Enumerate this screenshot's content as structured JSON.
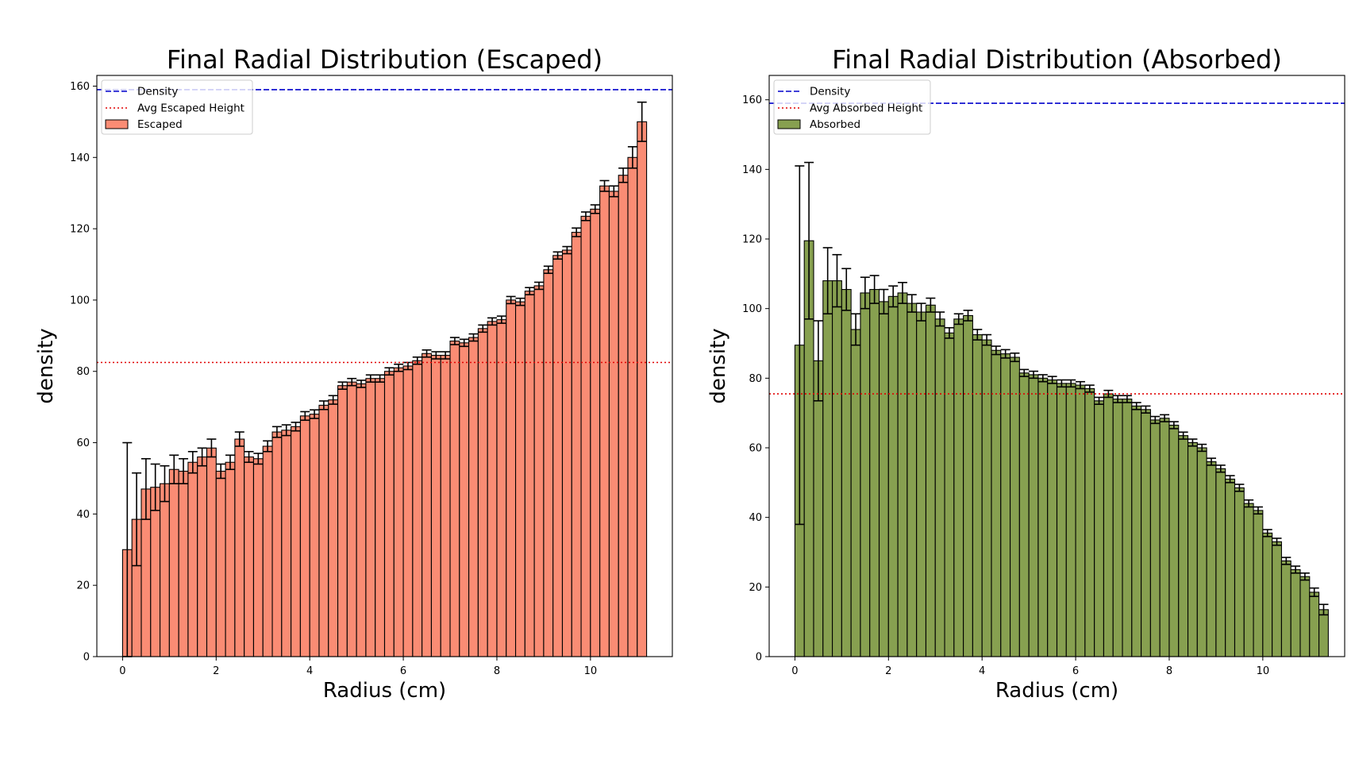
{
  "chart_data": [
    {
      "type": "bar",
      "title": "Final Radial Distribution (Escaped)",
      "xlabel": "Radius (cm)",
      "ylabel": "density",
      "xlim": [
        -0.55,
        11.75
      ],
      "ylim": [
        0,
        163
      ],
      "xticks": [
        0,
        2,
        4,
        6,
        8,
        10
      ],
      "yticks": [
        0,
        20,
        40,
        60,
        80,
        100,
        120,
        140,
        160
      ],
      "grid": false,
      "legend_position": "upper left",
      "bin_start": 0.0,
      "bin_width": 0.2,
      "bar_color": "#fa8c74",
      "density_line": 159,
      "density_label": "Density",
      "density_color": "#0000cc",
      "avg_line": 82.5,
      "avg_label": "Avg Escaped Height",
      "avg_color": "#e00000",
      "series": [
        {
          "name": "Escaped",
          "values": [
            30,
            38.5,
            47,
            47.5,
            48.5,
            52.5,
            52,
            54.5,
            56,
            58.5,
            52,
            54.5,
            61,
            56,
            55.5,
            59,
            63,
            63.5,
            64.5,
            67.5,
            68,
            70.5,
            72,
            76,
            77,
            76.5,
            78,
            78,
            80,
            81,
            81.5,
            83,
            85,
            84.5,
            84.5,
            88.5,
            88,
            89.5,
            92,
            94,
            94.5,
            100,
            99.5,
            102.5,
            104,
            108.5,
            112.5,
            114,
            119,
            123.5,
            125.5,
            132,
            130.5,
            135,
            140,
            150
          ],
          "errors": [
            30,
            13,
            8.5,
            6.5,
            5,
            4,
            3.5,
            3,
            2.5,
            2.5,
            2,
            2,
            2,
            1.5,
            1.5,
            1.5,
            1.5,
            1.5,
            1.2,
            1.2,
            1.2,
            1.2,
            1.2,
            1,
            1,
            1,
            1,
            1,
            1,
            1,
            1,
            1,
            1,
            1,
            1,
            1,
            1,
            1,
            1,
            1,
            1,
            1,
            1,
            1,
            1,
            1,
            1,
            1,
            1.2,
            1.2,
            1.2,
            1.5,
            1.5,
            2,
            3,
            5.5
          ]
        }
      ]
    },
    {
      "type": "bar",
      "title": "Final Radial Distribution (Absorbed)",
      "xlabel": "Radius (cm)",
      "ylabel": "density",
      "xlim": [
        -0.55,
        11.75
      ],
      "ylim": [
        0,
        167
      ],
      "xticks": [
        0,
        2,
        4,
        6,
        8,
        10
      ],
      "yticks": [
        0,
        20,
        40,
        60,
        80,
        100,
        120,
        140,
        160
      ],
      "grid": false,
      "legend_position": "upper left",
      "bin_start": 0.0,
      "bin_width": 0.2,
      "bar_color": "#87a050",
      "density_line": 159,
      "density_label": "Density",
      "density_color": "#0000cc",
      "avg_line": 75.5,
      "avg_label": "Avg Absorbed Height",
      "avg_color": "#e00000",
      "series": [
        {
          "name": "Absorbed",
          "values": [
            89.5,
            119.5,
            85,
            108,
            108,
            105.5,
            94,
            104.5,
            105.5,
            102,
            103.5,
            104.5,
            101.5,
            99,
            101,
            97,
            93,
            97,
            98,
            92.5,
            91,
            88,
            87,
            86,
            81.5,
            81,
            80,
            79.5,
            78.5,
            78.5,
            78,
            77,
            73.5,
            75.5,
            74,
            74,
            72,
            71,
            68,
            68.5,
            66.5,
            63.5,
            61.5,
            60,
            56,
            54,
            51,
            48.5,
            44,
            42,
            35.5,
            33,
            27.5,
            25,
            23,
            18.5,
            13.5
          ],
          "errors": [
            51.5,
            22.5,
            11.5,
            9.5,
            7.5,
            6,
            4.5,
            4.5,
            4,
            3.5,
            3,
            3,
            2.5,
            2.5,
            2,
            2,
            1.5,
            1.5,
            1.5,
            1.5,
            1.5,
            1.2,
            1.2,
            1.2,
            1,
            1,
            1,
            1,
            1,
            1,
            1,
            1,
            1,
            1,
            1,
            1,
            1,
            1,
            1,
            1,
            1,
            1,
            1,
            1,
            1,
            1,
            1,
            1,
            1,
            1,
            1,
            1,
            1,
            1,
            1,
            1.2,
            1.5
          ]
        }
      ]
    }
  ]
}
